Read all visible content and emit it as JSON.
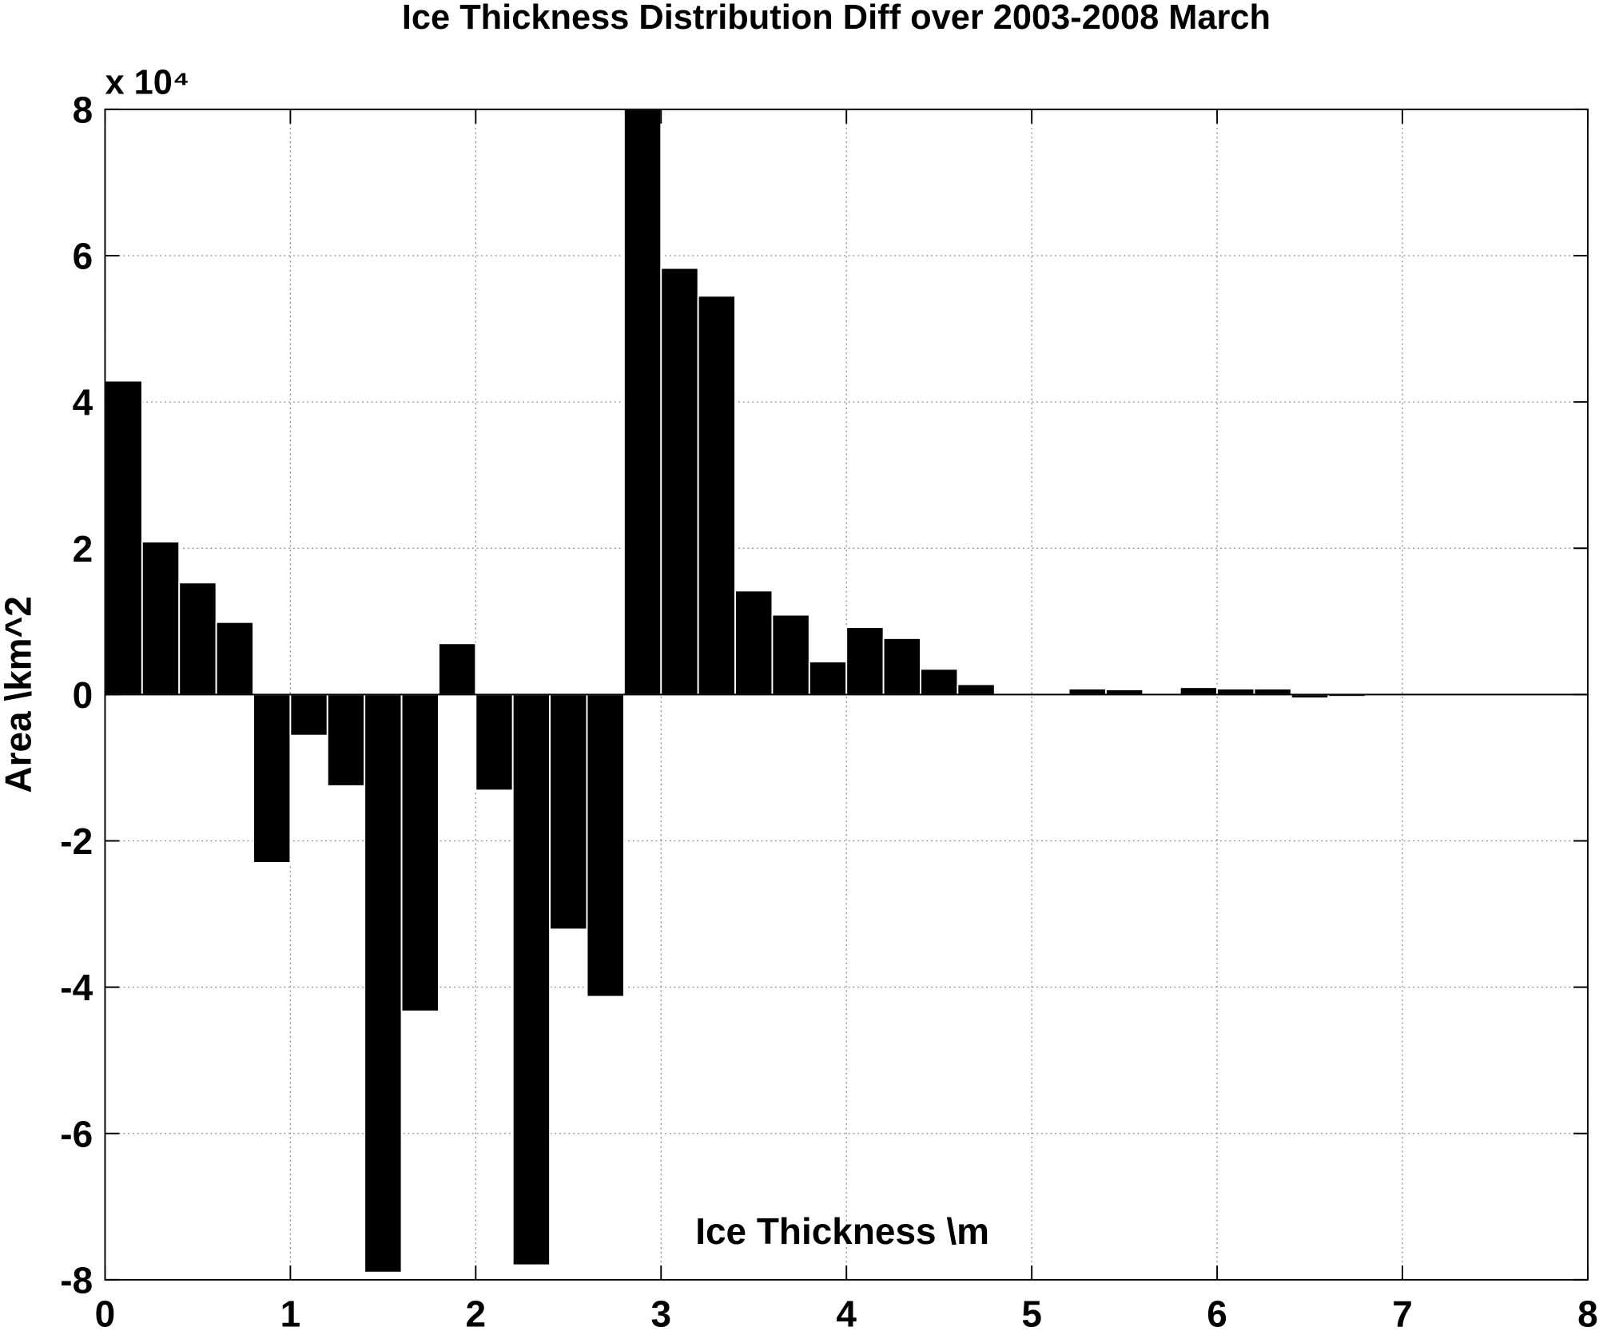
{
  "chart_data": {
    "type": "bar",
    "title": "Ice Thickness Distribution Diff over 2003-2008 March",
    "x_label": "Ice Thickness \\m",
    "y_label": "Area \\km^2",
    "y_multiplier": "x 10⁴",
    "x": [
      0.1,
      0.3,
      0.5,
      0.7,
      0.9,
      1.1,
      1.3,
      1.5,
      1.7,
      1.9,
      2.1,
      2.3,
      2.5,
      2.7,
      2.9,
      3.1,
      3.3,
      3.5,
      3.7,
      3.9,
      4.1,
      4.3,
      4.5,
      4.7,
      4.9,
      5.1,
      5.3,
      5.5,
      5.7,
      5.9,
      6.1,
      6.3,
      6.5,
      6.7,
      6.9,
      7.1,
      7.3,
      7.5,
      7.7,
      7.9
    ],
    "values": [
      4.29,
      2.09,
      1.53,
      0.99,
      -2.3,
      -0.56,
      -1.25,
      -7.9,
      -4.33,
      0.7,
      -1.31,
      -7.8,
      -3.21,
      -4.13,
      8,
      5.83,
      5.45,
      1.42,
      1.09,
      0.45,
      0.92,
      0.77,
      0.35,
      0.14,
      0,
      0,
      0.08,
      0.07,
      0.02,
      0.1,
      0.08,
      0.08,
      -0.05,
      -0.03,
      0,
      0,
      0,
      0,
      0,
      0
    ],
    "color": "#000000",
    "xlim": [
      0,
      8
    ],
    "xticks": [
      0,
      1,
      2,
      3,
      4,
      5,
      6,
      7,
      8
    ],
    "ylim": [
      -8,
      8
    ],
    "yticks": [
      -8,
      -6,
      -4,
      -2,
      0,
      2,
      4,
      6,
      8
    ],
    "grid": true
  }
}
